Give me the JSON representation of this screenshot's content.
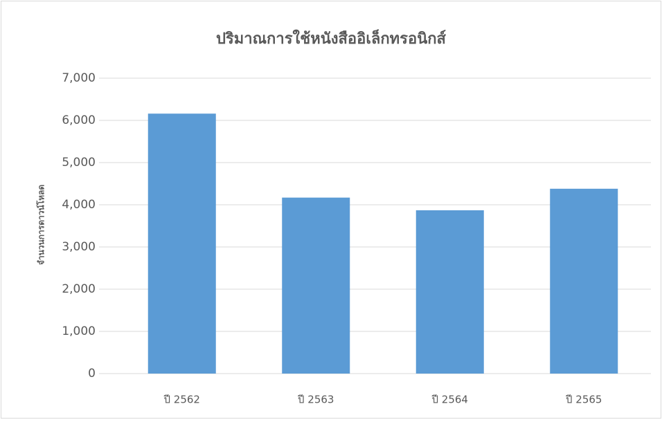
{
  "chart_data": {
    "type": "bar",
    "title": "ปริมาณการใช้หนังสืออิเล็กทรอนิกส์",
    "y_label": "จำนวนการดาวน์โหลด",
    "categories": [
      "ปี 2562",
      "ปี 2563",
      "ปี 2564",
      "ปี 2565"
    ],
    "values": [
      6160,
      4170,
      3870,
      4380
    ],
    "color": "#5b9bd5",
    "ylim": [
      0,
      7000
    ],
    "yticks": [
      0,
      {
        "value": 1000,
        "label": "1,000"
      },
      {
        "value": 2000,
        "label": "2,000"
      },
      {
        "value": 3000,
        "label": "3,000"
      },
      {
        "value": 4000,
        "label": "4,000"
      },
      {
        "value": 5000,
        "label": "5,000"
      },
      {
        "value": 6000,
        "label": "6,000"
      },
      {
        "value": 7000,
        "label": "7,000"
      }
    ],
    "grid": true
  }
}
